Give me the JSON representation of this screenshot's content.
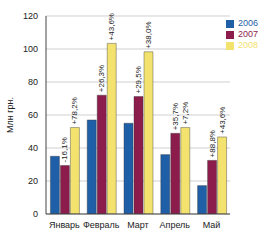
{
  "chart_data": {
    "type": "bar",
    "y_label": "Млн грн.",
    "categories": [
      "Январь",
      "Февраль",
      "Март",
      "Апрель",
      "Май"
    ],
    "series": [
      {
        "name": "2006",
        "color": "#1f5fa8",
        "values": [
          35,
          57,
          55,
          36,
          17.2
        ]
      },
      {
        "name": "2007",
        "color": "#8c1c4c",
        "values": [
          29.4,
          72,
          71.2,
          48.9,
          32.5
        ],
        "change_labels": [
          "-16,1%",
          "+26,3%",
          "+29,5%",
          "+35,7%",
          "+88,8%"
        ]
      },
      {
        "name": "2008",
        "color": "#f3e26e",
        "values": [
          52.4,
          103.4,
          98.3,
          52.4,
          46.7
        ],
        "change_labels": [
          "+78,2%",
          "+43,6%",
          "+38,0%",
          "+7,2%",
          "+43,6%"
        ]
      }
    ],
    "ylim": [
      0,
      120
    ],
    "yticks": [
      0,
      20,
      40,
      60,
      80,
      100,
      120
    ],
    "grid": true,
    "legend": "upper right"
  }
}
